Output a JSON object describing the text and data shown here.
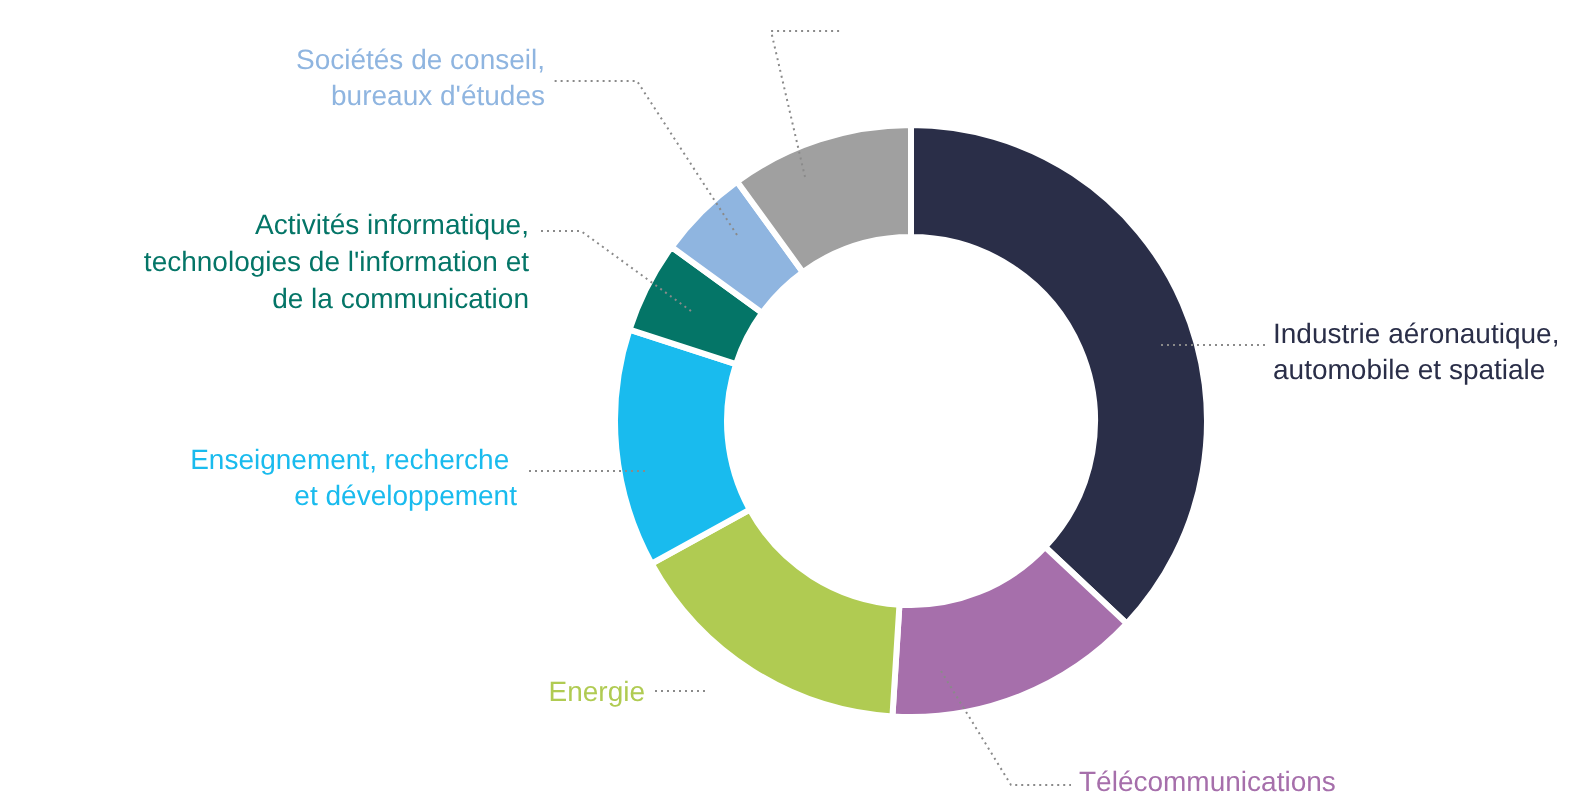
{
  "chart_data": {
    "type": "donut",
    "categories": [
      "Industrie aéronautique,\nautomobile et spatiale",
      "Télécommunications",
      "Energie",
      "Enseignement,  recherche\net développement",
      "Activités informatique,\ntechnologies de l'information et\nde la communication",
      "Sociétés de conseil,\nbureaux d'études",
      null
    ],
    "values": [
      37,
      14,
      16,
      13,
      5,
      5,
      10
    ],
    "colors": [
      "#2a2e48",
      "#a66fab",
      "#b0cb52",
      "#19bbee",
      "#047567",
      "#8fb5e0",
      "#a0a0a0"
    ]
  }
}
